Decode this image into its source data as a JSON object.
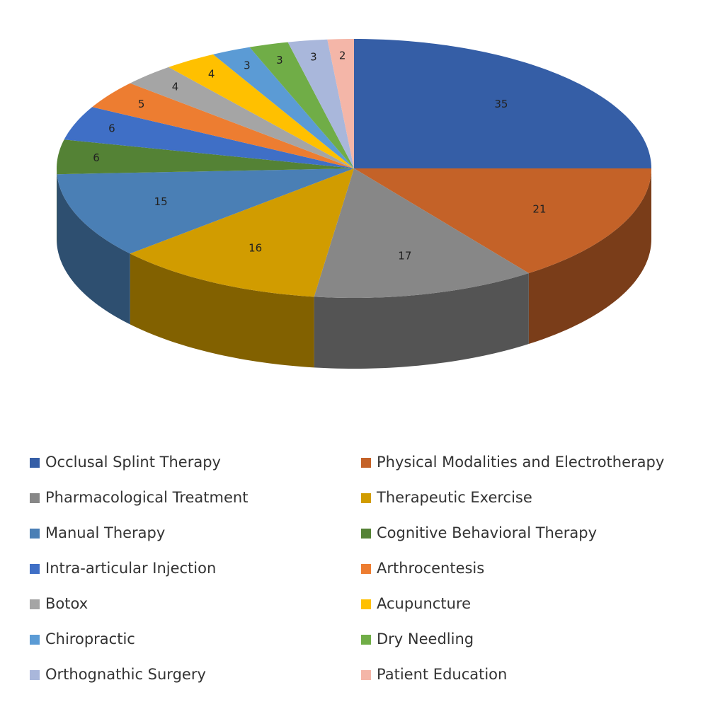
{
  "chart_data": {
    "type": "pie3d",
    "categories": [
      "Occlusal Splint Therapy",
      "Physical Modalities and Electrotherapy",
      "Pharmacological Treatment",
      "Therapeutic Exercise",
      "Manual Therapy",
      "Cognitive Behavioral Therapy",
      "Intra-articular Injection",
      "Arthrocentesis",
      "Botox",
      "Acupuncture",
      "Chiropractic",
      "Dry Needling",
      "Orthognathic Surgery",
      "Patient Education"
    ],
    "values": [
      35,
      21,
      17,
      16,
      15,
      6,
      6,
      5,
      4,
      4,
      3,
      3,
      3,
      2
    ],
    "colors": [
      "#355ea6",
      "#c46228",
      "#878787",
      "#d19c00",
      "#4a7fb5",
      "#548235",
      "#3f6fc6",
      "#ed7d31",
      "#a5a5a5",
      "#ffc000",
      "#5b9bd5",
      "#70ad47",
      "#a9b7db",
      "#f4b6a8"
    ]
  }
}
